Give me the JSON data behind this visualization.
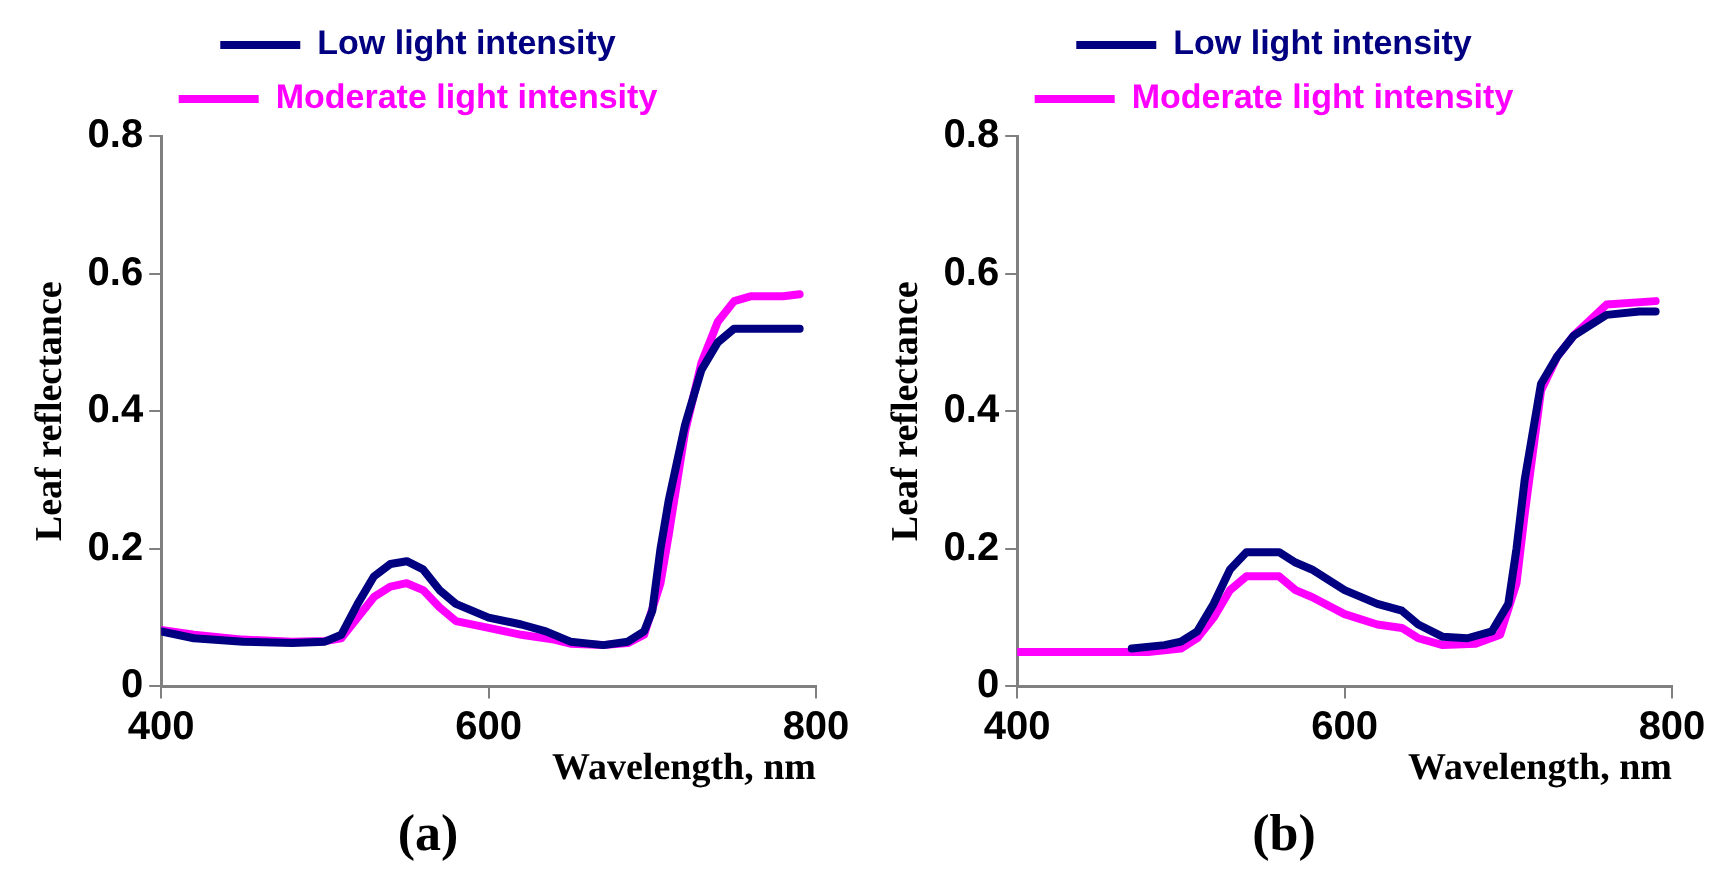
{
  "chart_data": [
    {
      "type": "line",
      "xlabel": "Wavelength, nm",
      "ylabel": "Leaf reflectance",
      "annotations": [
        "(a)"
      ],
      "xlim": [
        400,
        800
      ],
      "xticks": [
        400,
        600,
        800
      ],
      "ylim": [
        0,
        0.8
      ],
      "yticks": [
        0,
        0.2,
        0.4,
        0.6,
        0.8
      ],
      "grid": false,
      "legend": "top",
      "marker": "none",
      "line_style": "solid",
      "series": [
        {
          "name": "Low light intensity",
          "color": "#000080",
          "x": [
            400,
            420,
            450,
            480,
            500,
            510,
            520,
            530,
            540,
            550,
            560,
            570,
            580,
            600,
            620,
            635,
            650,
            670,
            685,
            695,
            700,
            705,
            710,
            720,
            730,
            740,
            750,
            770,
            790
          ],
          "values": [
            0.08,
            0.07,
            0.065,
            0.063,
            0.065,
            0.075,
            0.12,
            0.16,
            0.178,
            0.182,
            0.17,
            0.14,
            0.12,
            0.1,
            0.09,
            0.08,
            0.065,
            0.06,
            0.065,
            0.08,
            0.11,
            0.2,
            0.27,
            0.38,
            0.46,
            0.5,
            0.52,
            0.52,
            0.52
          ]
        },
        {
          "name": "Moderate light intensity",
          "color": "#ff00ff",
          "x": [
            400,
            420,
            450,
            480,
            500,
            510,
            520,
            530,
            540,
            550,
            560,
            570,
            580,
            600,
            620,
            640,
            650,
            670,
            685,
            695,
            705,
            710,
            720,
            730,
            740,
            750,
            760,
            780,
            790
          ],
          "values": [
            0.082,
            0.075,
            0.068,
            0.065,
            0.066,
            0.07,
            0.1,
            0.13,
            0.145,
            0.15,
            0.14,
            0.115,
            0.095,
            0.085,
            0.075,
            0.068,
            0.062,
            0.06,
            0.063,
            0.075,
            0.15,
            0.22,
            0.37,
            0.47,
            0.53,
            0.56,
            0.567,
            0.567,
            0.57
          ]
        }
      ]
    },
    {
      "type": "line",
      "xlabel": "Wavelength, nm",
      "ylabel": "Leaf reflectance",
      "annotations": [
        "(b)"
      ],
      "xlim": [
        400,
        800
      ],
      "xticks": [
        400,
        600,
        800
      ],
      "ylim": [
        0,
        0.8
      ],
      "yticks": [
        0,
        0.2,
        0.4,
        0.6,
        0.8
      ],
      "grid": false,
      "legend": "top",
      "marker": "none",
      "line_style": "solid",
      "series": [
        {
          "name": "Low light intensity",
          "color": "#000080",
          "x": [
            470,
            490,
            500,
            510,
            520,
            530,
            540,
            560,
            570,
            580,
            600,
            620,
            635,
            645,
            660,
            675,
            690,
            700,
            705,
            710,
            720,
            730,
            740,
            760,
            780,
            790
          ],
          "values": [
            0.055,
            0.06,
            0.065,
            0.08,
            0.12,
            0.17,
            0.195,
            0.195,
            0.18,
            0.17,
            0.14,
            0.12,
            0.11,
            0.09,
            0.072,
            0.07,
            0.08,
            0.12,
            0.2,
            0.3,
            0.44,
            0.48,
            0.51,
            0.54,
            0.545,
            0.545
          ]
        },
        {
          "name": "Moderate light intensity",
          "color": "#ff00ff",
          "x": [
            400,
            450,
            480,
            500,
            510,
            520,
            530,
            540,
            560,
            570,
            580,
            600,
            620,
            635,
            645,
            660,
            680,
            695,
            705,
            710,
            720,
            730,
            740,
            760,
            790
          ],
          "values": [
            0.05,
            0.05,
            0.05,
            0.055,
            0.07,
            0.1,
            0.14,
            0.16,
            0.16,
            0.14,
            0.13,
            0.105,
            0.09,
            0.085,
            0.07,
            0.06,
            0.062,
            0.075,
            0.15,
            0.25,
            0.43,
            0.48,
            0.51,
            0.555,
            0.56
          ]
        }
      ]
    }
  ]
}
